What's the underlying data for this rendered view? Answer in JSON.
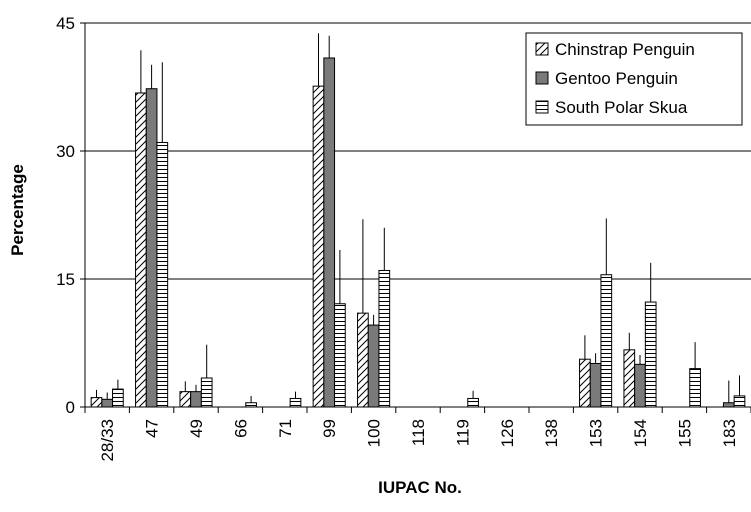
{
  "chart_data": {
    "type": "bar",
    "title": "",
    "xlabel": "IUPAC No.",
    "ylabel": "Percentage",
    "ylim": [
      0,
      45
    ],
    "yticks": [
      "0",
      "15",
      "30",
      "45"
    ],
    "grid": "horizontal",
    "legend_position": "top-right",
    "categories": [
      "28/33",
      "47",
      "49",
      "66",
      "71",
      "99",
      "100",
      "118",
      "119",
      "126",
      "138",
      "153",
      "154",
      "155",
      "183"
    ],
    "series": [
      {
        "name": "Chinstrap Penguin",
        "pattern": "diagonal-hatch",
        "color": "#ffffff",
        "values": [
          1.1,
          36.8,
          1.8,
          0,
          0,
          37.6,
          11.0,
          0,
          0,
          0,
          0,
          5.6,
          6.7,
          0,
          0
        ],
        "error": [
          0.9,
          5.0,
          1.2,
          0,
          0,
          6.2,
          11.0,
          0,
          0,
          0,
          0,
          2.8,
          2.0,
          0,
          0
        ]
      },
      {
        "name": "Gentoo Penguin",
        "pattern": "solid",
        "color": "#7a7a7a",
        "values": [
          0.9,
          37.3,
          1.8,
          0,
          0,
          40.9,
          9.6,
          0,
          0,
          0,
          0,
          5.1,
          5.0,
          0,
          0.5
        ],
        "error": [
          0.8,
          2.8,
          0.8,
          0,
          0,
          2.6,
          1.2,
          0,
          0,
          0,
          0,
          1.2,
          1.1,
          0,
          2.6
        ]
      },
      {
        "name": "South Polar Skua",
        "pattern": "horizontal-hatch",
        "color": "#ffffff",
        "values": [
          2.1,
          31.0,
          3.4,
          0.5,
          1.0,
          12.1,
          16.0,
          0,
          1.0,
          0,
          0,
          15.5,
          12.3,
          4.5,
          1.3
        ],
        "error": [
          1.1,
          9.4,
          3.9,
          0.8,
          0.8,
          6.3,
          5.0,
          0,
          0.9,
          0,
          0,
          6.6,
          4.6,
          3.1,
          2.4
        ]
      }
    ]
  }
}
